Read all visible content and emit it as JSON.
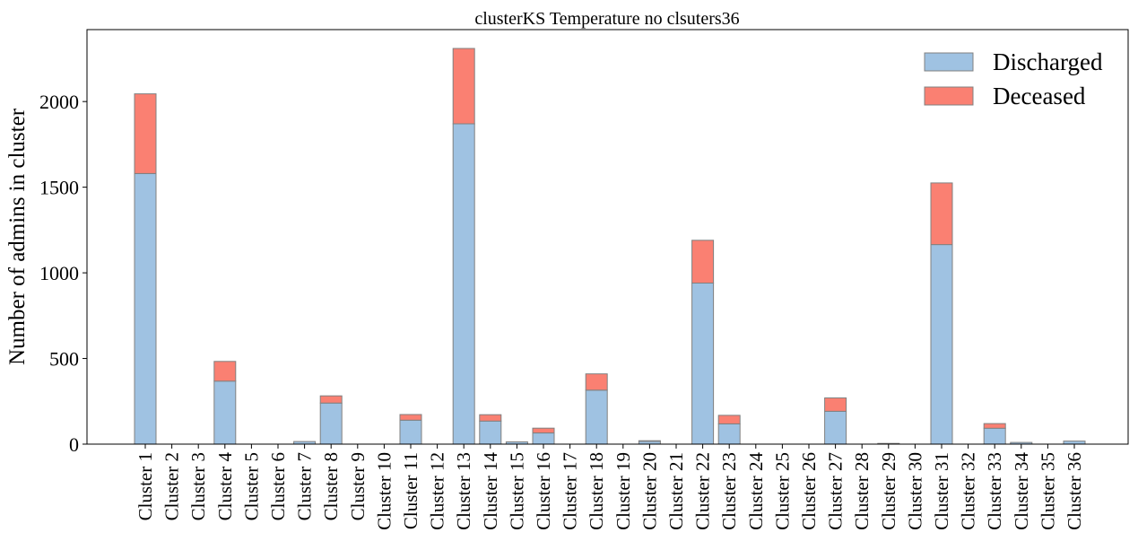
{
  "chart_data": {
    "type": "bar",
    "stacked": true,
    "title": "clusterKS Temperature no clsuters36",
    "xlabel": "",
    "ylabel": "Number of admins in cluster",
    "ylim": [
      0,
      2420
    ],
    "yticks": [
      0,
      500,
      1000,
      1500,
      2000
    ],
    "grid": false,
    "legend_position": "top-right",
    "categories": [
      "Cluster 1",
      "Cluster 2",
      "Cluster 3",
      "Cluster 4",
      "Cluster 5",
      "Cluster 6",
      "Cluster 7",
      "Cluster 8",
      "Cluster 9",
      "Cluster 10",
      "Cluster 11",
      "Cluster 12",
      "Cluster 13",
      "Cluster 14",
      "Cluster 15",
      "Cluster 16",
      "Cluster 17",
      "Cluster 18",
      "Cluster 19",
      "Cluster 20",
      "Cluster 21",
      "Cluster 22",
      "Cluster 23",
      "Cluster 24",
      "Cluster 25",
      "Cluster 26",
      "Cluster 27",
      "Cluster 28",
      "Cluster 29",
      "Cluster 30",
      "Cluster 31",
      "Cluster 32",
      "Cluster 33",
      "Cluster 34",
      "Cluster 35",
      "Cluster 36"
    ],
    "series": [
      {
        "name": "Discharged",
        "color": "#9fc2e2",
        "values": [
          1580,
          0,
          0,
          368,
          0,
          0,
          15,
          240,
          0,
          0,
          140,
          0,
          1870,
          135,
          13,
          65,
          0,
          315,
          0,
          17,
          0,
          940,
          118,
          0,
          0,
          0,
          192,
          0,
          4,
          0,
          1165,
          0,
          93,
          10,
          0,
          18
        ]
      },
      {
        "name": "Deceased",
        "color": "#fa8072",
        "values": [
          465,
          0,
          0,
          115,
          0,
          0,
          0,
          42,
          0,
          0,
          33,
          0,
          440,
          37,
          0,
          28,
          0,
          95,
          0,
          3,
          0,
          250,
          50,
          0,
          0,
          0,
          78,
          0,
          0,
          0,
          360,
          0,
          27,
          0,
          0,
          0
        ]
      }
    ]
  }
}
